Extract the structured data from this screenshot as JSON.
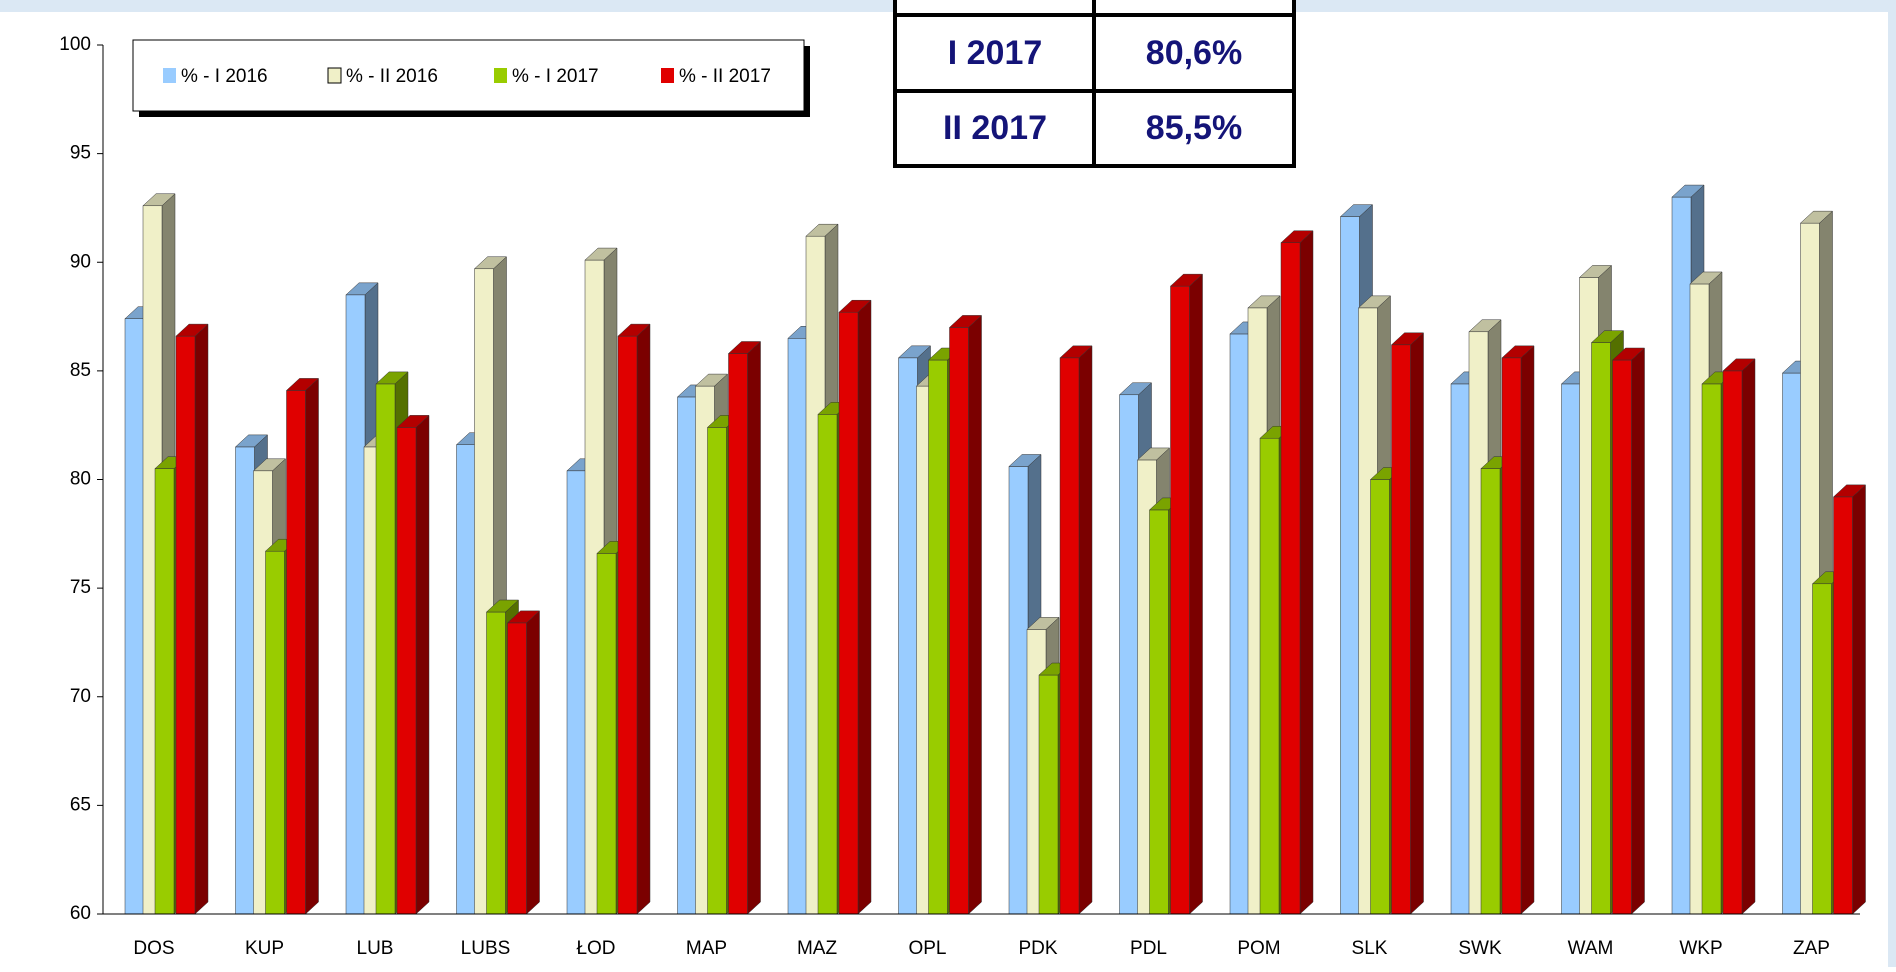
{
  "chart_data": {
    "type": "bar3d",
    "categories": [
      "DOS",
      "KUP",
      "LUB",
      "LUBS",
      "ŁOD",
      "MAP",
      "MAZ",
      "OPL",
      "PDK",
      "PDL",
      "POM",
      "SLK",
      "SWK",
      "WAM",
      "WKP",
      "ZAP"
    ],
    "series": [
      {
        "name": "% - I 2016",
        "color": "#99ccff",
        "values": [
          87.4,
          81.5,
          88.5,
          81.6,
          80.4,
          83.8,
          86.5,
          85.6,
          80.6,
          83.9,
          86.7,
          92.1,
          84.4,
          84.4,
          93.0,
          84.9
        ]
      },
      {
        "name": "% - II 2016",
        "color": "#f0f0c8",
        "values": [
          92.6,
          80.4,
          81.5,
          89.7,
          90.1,
          84.3,
          91.2,
          84.3,
          73.1,
          80.9,
          87.9,
          87.9,
          86.8,
          89.3,
          89.0,
          91.8
        ]
      },
      {
        "name": "% - I 2017",
        "color": "#99cc00",
        "values": [
          80.5,
          76.7,
          84.4,
          73.9,
          76.6,
          82.4,
          83.0,
          85.5,
          71.0,
          78.6,
          81.9,
          80.0,
          80.5,
          86.3,
          84.4,
          75.2
        ]
      },
      {
        "name": "% - II 2017",
        "color": "#e00000",
        "values": [
          86.6,
          84.1,
          82.4,
          73.4,
          86.6,
          85.8,
          87.7,
          87.0,
          85.6,
          88.9,
          90.9,
          86.2,
          85.6,
          85.5,
          85.0,
          79.2
        ]
      }
    ],
    "ylim": [
      60,
      100
    ],
    "yticks": [
      60,
      65,
      70,
      75,
      80,
      85,
      90,
      95,
      100
    ],
    "grid": false
  },
  "table": {
    "rows": [
      [
        "I 2017",
        "80,6%"
      ],
      [
        "II 2017",
        "85,5%"
      ]
    ]
  }
}
